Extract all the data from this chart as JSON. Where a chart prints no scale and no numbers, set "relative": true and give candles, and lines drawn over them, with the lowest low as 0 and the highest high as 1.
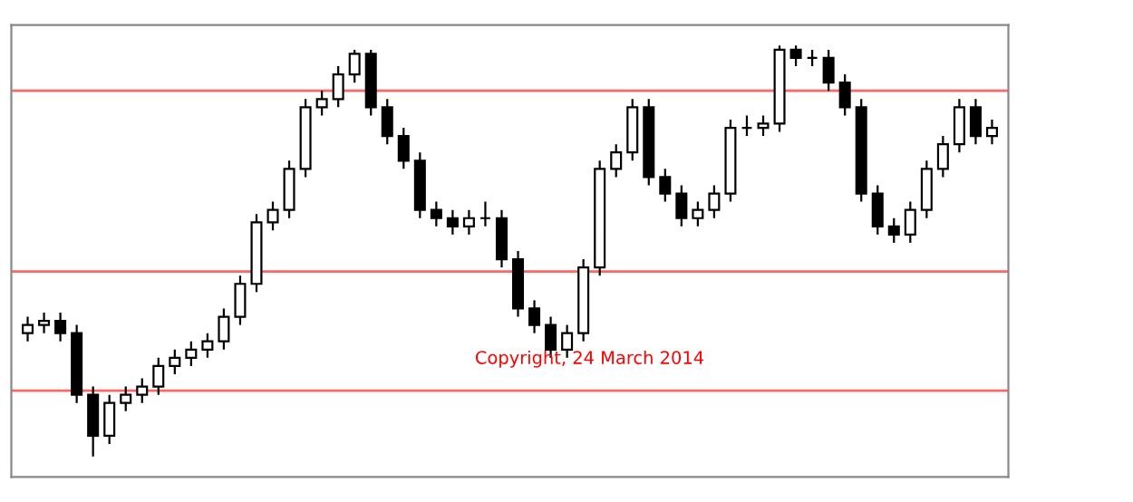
{
  "chart_data": {
    "type": "candlestick",
    "relative": true,
    "categories": [
      null,
      null,
      null,
      null,
      null,
      null,
      null,
      null,
      null,
      null,
      null,
      null,
      null,
      null,
      null,
      null,
      null,
      null,
      null,
      null,
      null,
      null,
      null,
      null,
      null,
      null,
      null,
      null,
      null,
      null,
      null,
      null,
      null,
      null,
      null,
      null,
      null,
      null,
      null,
      null,
      null,
      null,
      null,
      null,
      null,
      null,
      null,
      null,
      null,
      null,
      null,
      null,
      null,
      null,
      null,
      null,
      null,
      null,
      null,
      null
    ],
    "ohlc": [
      [
        0.3,
        0.34,
        0.28,
        0.32
      ],
      [
        0.32,
        0.35,
        0.3,
        0.33
      ],
      [
        0.33,
        0.35,
        0.28,
        0.3
      ],
      [
        0.3,
        0.32,
        0.13,
        0.15
      ],
      [
        0.15,
        0.17,
        0.0,
        0.05
      ],
      [
        0.05,
        0.15,
        0.03,
        0.13
      ],
      [
        0.13,
        0.17,
        0.11,
        0.15
      ],
      [
        0.15,
        0.19,
        0.13,
        0.17
      ],
      [
        0.17,
        0.24,
        0.15,
        0.22
      ],
      [
        0.22,
        0.26,
        0.2,
        0.24
      ],
      [
        0.24,
        0.28,
        0.22,
        0.26
      ],
      [
        0.26,
        0.3,
        0.24,
        0.28
      ],
      [
        0.28,
        0.36,
        0.26,
        0.34
      ],
      [
        0.34,
        0.44,
        0.32,
        0.42
      ],
      [
        0.42,
        0.59,
        0.4,
        0.57
      ],
      [
        0.57,
        0.62,
        0.55,
        0.6
      ],
      [
        0.6,
        0.72,
        0.58,
        0.7
      ],
      [
        0.7,
        0.87,
        0.68,
        0.85
      ],
      [
        0.85,
        0.89,
        0.83,
        0.87
      ],
      [
        0.87,
        0.95,
        0.85,
        0.93
      ],
      [
        0.93,
        0.99,
        0.91,
        0.98
      ],
      [
        0.98,
        0.99,
        0.83,
        0.85
      ],
      [
        0.85,
        0.87,
        0.76,
        0.78
      ],
      [
        0.78,
        0.8,
        0.7,
        0.72
      ],
      [
        0.72,
        0.74,
        0.58,
        0.6
      ],
      [
        0.6,
        0.62,
        0.56,
        0.58
      ],
      [
        0.58,
        0.6,
        0.54,
        0.56
      ],
      [
        0.56,
        0.6,
        0.54,
        0.58
      ],
      [
        0.58,
        0.62,
        0.56,
        0.58
      ],
      [
        0.58,
        0.6,
        0.46,
        0.48
      ],
      [
        0.48,
        0.5,
        0.34,
        0.36
      ],
      [
        0.36,
        0.38,
        0.3,
        0.32
      ],
      [
        0.32,
        0.34,
        0.24,
        0.26
      ],
      [
        0.26,
        0.32,
        0.24,
        0.3
      ],
      [
        0.3,
        0.48,
        0.28,
        0.46
      ],
      [
        0.46,
        0.72,
        0.44,
        0.7
      ],
      [
        0.7,
        0.76,
        0.68,
        0.74
      ],
      [
        0.74,
        0.87,
        0.72,
        0.85
      ],
      [
        0.85,
        0.87,
        0.66,
        0.68
      ],
      [
        0.68,
        0.7,
        0.62,
        0.64
      ],
      [
        0.64,
        0.66,
        0.56,
        0.58
      ],
      [
        0.58,
        0.62,
        0.56,
        0.6
      ],
      [
        0.6,
        0.66,
        0.58,
        0.64
      ],
      [
        0.64,
        0.82,
        0.62,
        0.8
      ],
      [
        0.8,
        0.83,
        0.78,
        0.8
      ],
      [
        0.8,
        0.83,
        0.78,
        0.81
      ],
      [
        0.81,
        1.0,
        0.79,
        0.99
      ],
      [
        0.99,
        1.0,
        0.95,
        0.97
      ],
      [
        0.97,
        0.99,
        0.95,
        0.97
      ],
      [
        0.97,
        0.99,
        0.89,
        0.91
      ],
      [
        0.91,
        0.93,
        0.83,
        0.85
      ],
      [
        0.85,
        0.87,
        0.62,
        0.64
      ],
      [
        0.64,
        0.66,
        0.54,
        0.56
      ],
      [
        0.56,
        0.58,
        0.52,
        0.54
      ],
      [
        0.54,
        0.62,
        0.52,
        0.6
      ],
      [
        0.6,
        0.72,
        0.58,
        0.7
      ],
      [
        0.7,
        0.78,
        0.68,
        0.76
      ],
      [
        0.76,
        0.87,
        0.74,
        0.85
      ],
      [
        0.85,
        0.87,
        0.76,
        0.78
      ],
      [
        0.78,
        0.82,
        0.76,
        0.8
      ]
    ],
    "color": "#000000",
    "ref_lines": [
      {
        "axis": "y",
        "value": 0.89,
        "color": "#ff6666"
      },
      {
        "axis": "y",
        "value": 0.45,
        "color": "#ff6666"
      },
      {
        "axis": "y",
        "value": 0.16,
        "color": "#ff6666"
      }
    ],
    "annotations": [
      "Copyright, 24 March 2014"
    ],
    "grid": false
  }
}
